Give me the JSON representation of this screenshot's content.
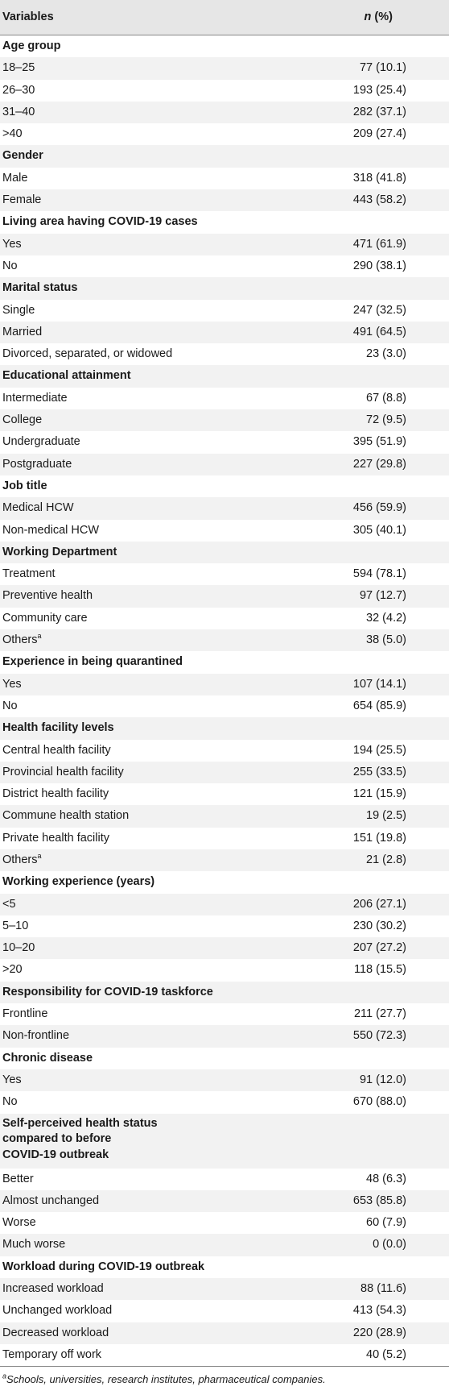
{
  "header": {
    "variables": "Variables",
    "n_letter": "n",
    "n_suffix": " (%)"
  },
  "sections": [
    {
      "title": "Age group",
      "rows": [
        {
          "label": "18–25",
          "value": "77 (10.1)"
        },
        {
          "label": "26–30",
          "value": "193 (25.4)"
        },
        {
          "label": "31–40",
          "value": "282 (37.1)"
        },
        {
          "label": ">40",
          "value": "209 (27.4)"
        }
      ]
    },
    {
      "title": "Gender",
      "rows": [
        {
          "label": "Male",
          "value": "318 (41.8)"
        },
        {
          "label": "Female",
          "value": "443 (58.2)"
        }
      ]
    },
    {
      "title": "Living area having COVID-19 cases",
      "rows": [
        {
          "label": "Yes",
          "value": "471 (61.9)"
        },
        {
          "label": "No",
          "value": "290 (38.1)"
        }
      ]
    },
    {
      "title": "Marital status",
      "rows": [
        {
          "label": "Single",
          "value": "247 (32.5)"
        },
        {
          "label": "Married",
          "value": "491 (64.5)"
        },
        {
          "label": "Divorced, separated, or widowed",
          "value": "23 (3.0)"
        }
      ]
    },
    {
      "title": "Educational attainment",
      "rows": [
        {
          "label": "Intermediate",
          "value": "67 (8.8)"
        },
        {
          "label": "College",
          "value": "72 (9.5)"
        },
        {
          "label": "Undergraduate",
          "value": "395 (51.9)"
        },
        {
          "label": "Postgraduate",
          "value": "227 (29.8)"
        }
      ]
    },
    {
      "title": "Job title",
      "rows": [
        {
          "label": "Medical HCW",
          "value": "456 (59.9)"
        },
        {
          "label": "Non-medical HCW",
          "value": "305 (40.1)"
        }
      ]
    },
    {
      "title": "Working Department",
      "rows": [
        {
          "label": "Treatment",
          "value": "594 (78.1)"
        },
        {
          "label": "Preventive health",
          "value": "97 (12.7)"
        },
        {
          "label": "Community care",
          "value": "32 (4.2)"
        },
        {
          "label": "Others",
          "sup": "a",
          "value": "38 (5.0)"
        }
      ]
    },
    {
      "title": "Experience in being quarantined",
      "rows": [
        {
          "label": "Yes",
          "value": "107 (14.1)"
        },
        {
          "label": "No",
          "value": "654 (85.9)"
        }
      ]
    },
    {
      "title": "Health facility levels",
      "rows": [
        {
          "label": "Central health facility",
          "value": "194 (25.5)"
        },
        {
          "label": "Provincial health facility",
          "value": "255 (33.5)"
        },
        {
          "label": "District health facility",
          "value": "121 (15.9)"
        },
        {
          "label": "Commune health station",
          "value": "19 (2.5)"
        },
        {
          "label": "Private health facility",
          "value": "151 (19.8)"
        },
        {
          "label": "Others",
          "sup": "a",
          "value": "21 (2.8)"
        }
      ]
    },
    {
      "title": "Working experience (years)",
      "rows": [
        {
          "label": "<5",
          "value": "206 (27.1)"
        },
        {
          "label": "5–10",
          "value": "230 (30.2)"
        },
        {
          "label": "10–20",
          "value": "207 (27.2)"
        },
        {
          "label": ">20",
          "value": "118 (15.5)"
        }
      ]
    },
    {
      "title": "Responsibility for COVID-19 taskforce",
      "rows": [
        {
          "label": "Frontline",
          "value": "211 (27.7)"
        },
        {
          "label": "Non-frontline",
          "value": "550 (72.3)"
        }
      ]
    },
    {
      "title": "Chronic disease",
      "rows": [
        {
          "label": "Yes",
          "value": "91 (12.0)"
        },
        {
          "label": "No",
          "value": "670 (88.0)"
        }
      ]
    },
    {
      "title_lines": [
        "Self-perceived health status",
        "compared to before",
        "COVID-19 outbreak"
      ],
      "rows": [
        {
          "label": "Better",
          "value": "48 (6.3)"
        },
        {
          "label": "Almost unchanged",
          "value": "653 (85.8)"
        },
        {
          "label": "Worse",
          "value": "60 (7.9)"
        },
        {
          "label": "Much worse",
          "value": "0 (0.0)"
        }
      ]
    },
    {
      "title": "Workload during COVID-19 outbreak",
      "rows": [
        {
          "label": "Increased workload",
          "value": "88 (11.6)"
        },
        {
          "label": "Unchanged workload",
          "value": "413 (54.3)"
        },
        {
          "label": "Decreased workload",
          "value": "220 (28.9)"
        },
        {
          "label": "Temporary off work",
          "value": "40 (5.2)"
        }
      ]
    }
  ],
  "footnote": {
    "sup": "a",
    "text": "Schools, universities, research institutes, pharmaceutical companies."
  }
}
